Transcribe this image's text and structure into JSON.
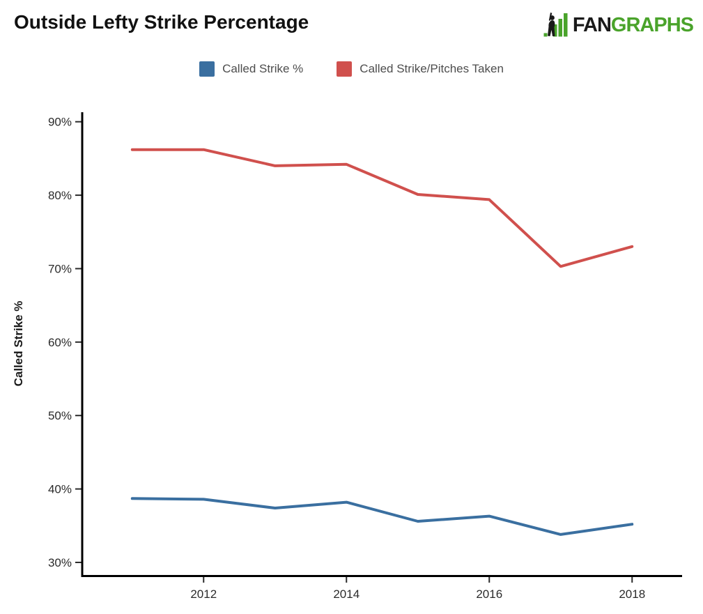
{
  "header": {
    "title": "Outside Lefty Strike Percentage",
    "logo": {
      "part_black": "FAN",
      "part_green": "GRAPHS",
      "green": "#4aa32b",
      "black": "#1a1a1a"
    }
  },
  "legend": {
    "items": [
      {
        "label": "Called Strike %",
        "color": "#3a6fa0"
      },
      {
        "label": "Called Strike/Pitches Taken",
        "color": "#d0504d"
      }
    ]
  },
  "chart_data": {
    "type": "line",
    "title": "Outside Lefty Strike Percentage",
    "xlabel": "",
    "ylabel": "Called Strike %",
    "x": [
      2011,
      2012,
      2013,
      2014,
      2015,
      2016,
      2017,
      2018
    ],
    "series": [
      {
        "name": "Called Strike %",
        "color": "#3a6fa0",
        "values": [
          38.7,
          38.6,
          37.4,
          38.2,
          35.6,
          36.3,
          33.8,
          35.2
        ]
      },
      {
        "name": "Called Strike/Pitches Taken",
        "color": "#d0504d",
        "values": [
          86.2,
          86.2,
          84.0,
          84.2,
          80.1,
          79.4,
          70.3,
          73.0
        ]
      }
    ],
    "xlim": [
      2010.3,
      2018.7
    ],
    "ylim": [
      28.1,
      91.3
    ],
    "xticks": [
      2012,
      2014,
      2016,
      2018
    ],
    "xtick_labels": [
      "2012",
      "2014",
      "2016",
      "2018"
    ],
    "yticks": [
      30,
      40,
      50,
      60,
      70,
      80,
      90
    ],
    "ytick_labels": [
      "30%",
      "40%",
      "50%",
      "60%",
      "70%",
      "80%",
      "90%"
    ],
    "grid": false,
    "legend_position": "top",
    "line_width": 4
  }
}
